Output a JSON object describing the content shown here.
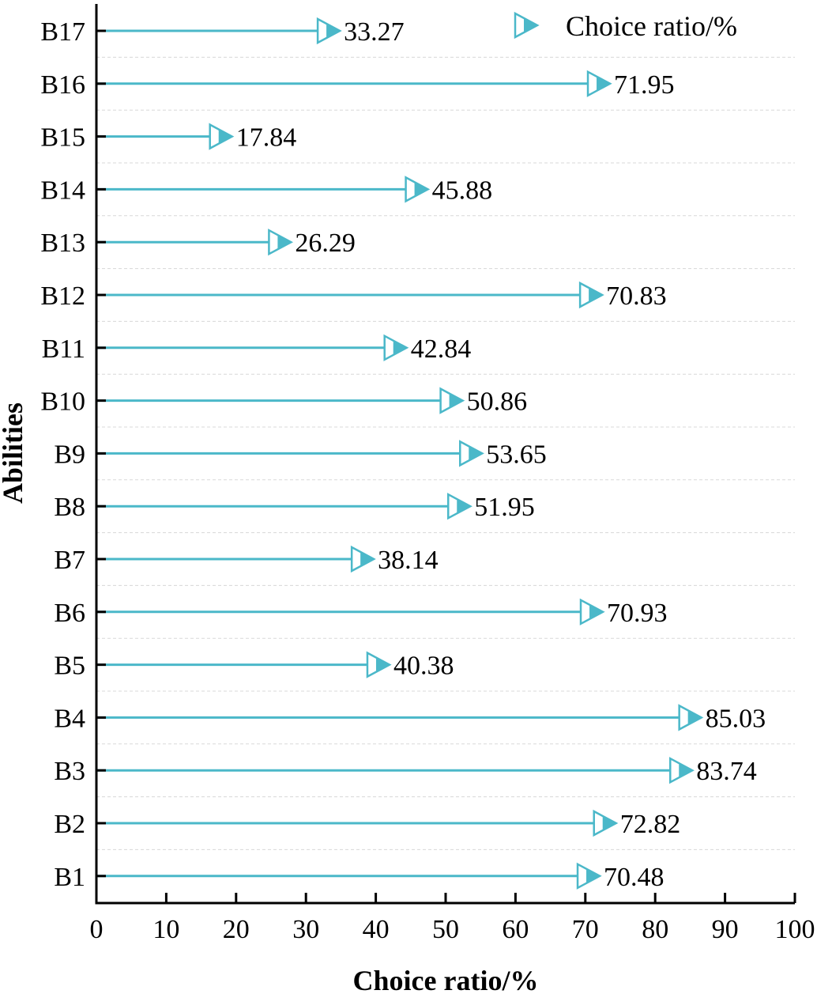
{
  "chart_data": {
    "type": "lollipop-bar",
    "orientation": "horizontal",
    "xlabel": "Choice ratio/%",
    "ylabel": "Abilities",
    "xlim": [
      0,
      100
    ],
    "xticks": [
      "0",
      "10",
      "20",
      "30",
      "40",
      "50",
      "60",
      "70",
      "80",
      "90",
      "100"
    ],
    "categories": [
      "B1",
      "B2",
      "B3",
      "B4",
      "B5",
      "B6",
      "B7",
      "B8",
      "B9",
      "B10",
      "B11",
      "B12",
      "B13",
      "B14",
      "B15",
      "B16",
      "B17"
    ],
    "series": [
      {
        "name": "Choice ratio/%",
        "marker": "right-triangle",
        "color": "#4bb8c9",
        "values": [
          70.48,
          72.82,
          83.74,
          85.03,
          40.38,
          70.93,
          38.14,
          51.95,
          53.65,
          50.86,
          42.84,
          70.83,
          26.29,
          45.88,
          17.84,
          71.95,
          33.27
        ],
        "labels": [
          "70.48",
          "72.82",
          "83.74",
          "85.03",
          "40.38",
          "70.93",
          "38.14",
          "51.95",
          "53.65",
          "50.86",
          "42.84",
          "70.83",
          "26.29",
          "45.88",
          "17.84",
          "71.95",
          "33.27"
        ]
      }
    ],
    "legend": "top-right",
    "grid": "horizontal dashed between categories"
  }
}
